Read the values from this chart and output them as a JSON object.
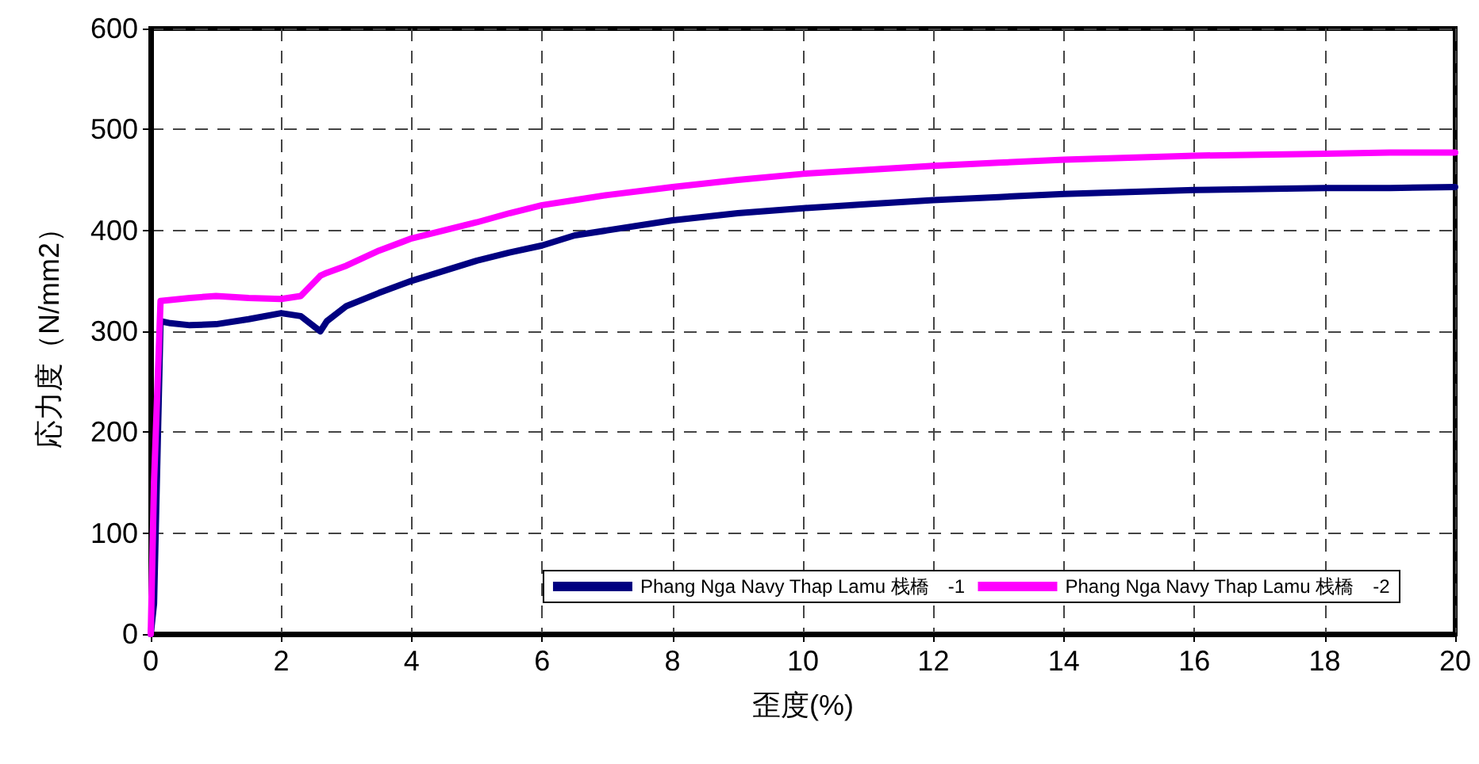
{
  "chart_data": {
    "type": "line",
    "xlabel": "歪度(%)",
    "ylabel": "応力度（N/mm2）",
    "xlim": [
      0,
      20
    ],
    "xticks": [
      0,
      2,
      4,
      6,
      8,
      10,
      12,
      14,
      16,
      18,
      20
    ],
    "ylim": [
      0,
      600
    ],
    "yticks": [
      0,
      100,
      200,
      300,
      400,
      500,
      600
    ],
    "grid": true,
    "legend": "bottom right",
    "marker": "none",
    "line_style": "solid",
    "x": [
      0,
      0.05,
      0.15,
      0.3,
      0.6,
      1,
      1.5,
      2,
      2.3,
      2.6,
      2.7,
      3,
      3.5,
      4,
      4.5,
      5,
      5.5,
      6,
      6.5,
      7,
      8,
      9,
      10,
      11,
      12,
      13,
      14,
      15,
      16,
      17,
      18,
      19,
      20
    ],
    "series": [
      {
        "name": "Phang Nga Navy Thap Lamu 栈橋　-1",
        "color": "#000080",
        "values": [
          0,
          30,
          310,
          308,
          306,
          307,
          312,
          318,
          315,
          300,
          310,
          325,
          338,
          350,
          360,
          370,
          378,
          385,
          395,
          400,
          410,
          417,
          422,
          426,
          430,
          433,
          436,
          438,
          440,
          441,
          442,
          442,
          443
        ]
      },
      {
        "name": "Phang Nga Navy Thap Lamu 栈橋　-2",
        "color": "#ff00ff",
        "values": [
          0,
          150,
          330,
          331,
          333,
          335,
          333,
          332,
          335,
          355,
          358,
          365,
          380,
          392,
          400,
          408,
          417,
          425,
          430,
          435,
          443,
          450,
          456,
          460,
          464,
          467,
          470,
          472,
          474,
          475,
          476,
          477,
          477
        ]
      }
    ]
  }
}
